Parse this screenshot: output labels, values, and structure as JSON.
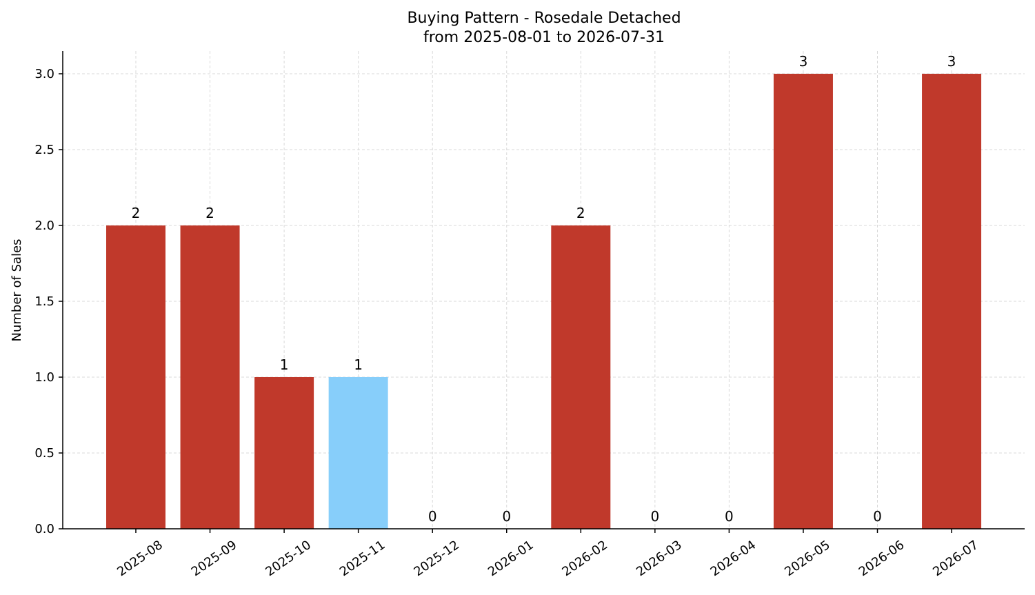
{
  "chart_data": {
    "type": "bar",
    "title": "Buying Pattern - Rosedale Detached",
    "subtitle": "from 2025-08-01 to 2026-07-31",
    "xlabel": "",
    "ylabel": "Number of Sales",
    "categories": [
      "2025-08",
      "2025-09",
      "2025-10",
      "2025-11",
      "2025-12",
      "2026-01",
      "2026-02",
      "2026-03",
      "2026-04",
      "2026-05",
      "2026-06",
      "2026-07"
    ],
    "values": [
      2,
      2,
      1,
      1,
      0,
      0,
      2,
      0,
      0,
      3,
      0,
      3
    ],
    "data_labels": [
      "2",
      "2",
      "1",
      "1",
      "0",
      "0",
      "2",
      "0",
      "0",
      "3",
      "0",
      "3"
    ],
    "ylim": [
      0,
      3.15
    ],
    "yticks": [
      0.0,
      0.5,
      1.0,
      1.5,
      2.0,
      2.5,
      3.0
    ],
    "ytick_labels": [
      "0.0",
      "0.5",
      "1.0",
      "1.5",
      "2.0",
      "2.5",
      "3.0"
    ],
    "highlight_index": 3,
    "colors": {
      "bar": "#c0392b",
      "highlight": "#87cefa"
    },
    "grid": true
  }
}
